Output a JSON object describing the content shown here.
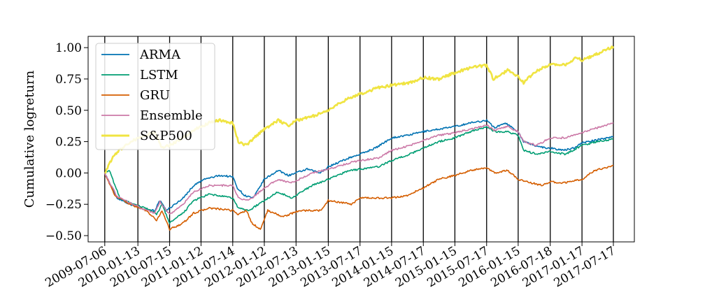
{
  "chart_data": {
    "type": "line",
    "title": "",
    "xlabel": "",
    "ylabel": "Cumulative logreturn",
    "ylim": [
      -0.55,
      1.09
    ],
    "xlim": [
      "2009-04-01",
      "2017-11-15"
    ],
    "yticks": [
      -0.5,
      -0.25,
      0.0,
      0.25,
      0.5,
      0.75,
      1.0
    ],
    "ytick_labels": [
      "−0.50",
      "−0.25",
      "0.00",
      "0.25",
      "0.50",
      "0.75",
      "1.00"
    ],
    "xticks": [
      "2009-07-06",
      "2010-01-13",
      "2010-07-15",
      "2011-01-12",
      "2011-07-14",
      "2012-01-12",
      "2012-07-13",
      "2013-01-15",
      "2013-07-17",
      "2014-01-15",
      "2014-07-17",
      "2015-01-15",
      "2015-07-17",
      "2016-01-15",
      "2016-07-18",
      "2017-01-17",
      "2017-07-17"
    ],
    "vertical_lines_at_xticks": true,
    "grid": false,
    "legend_position": "upper-left",
    "series": [
      {
        "name": "ARMA",
        "color": "#0072b2",
        "points": [
          [
            "2009-07-06",
            0.0
          ],
          [
            "2009-09-15",
            -0.2
          ],
          [
            "2009-12-01",
            -0.25
          ],
          [
            "2010-02-01",
            -0.28
          ],
          [
            "2010-04-20",
            -0.3
          ],
          [
            "2010-05-20",
            -0.22
          ],
          [
            "2010-06-25",
            -0.3
          ],
          [
            "2010-08-15",
            -0.25
          ],
          [
            "2010-10-01",
            -0.2
          ],
          [
            "2010-12-01",
            -0.1
          ],
          [
            "2011-02-01",
            -0.05
          ],
          [
            "2011-05-01",
            -0.02
          ],
          [
            "2011-07-14",
            -0.03
          ],
          [
            "2011-08-10",
            -0.12
          ],
          [
            "2011-09-20",
            -0.18
          ],
          [
            "2011-11-10",
            -0.2
          ],
          [
            "2012-01-12",
            -0.05
          ],
          [
            "2012-04-01",
            0.02
          ],
          [
            "2012-06-01",
            -0.02
          ],
          [
            "2012-09-15",
            0.03
          ],
          [
            "2012-12-01",
            0.0
          ],
          [
            "2013-01-15",
            0.05
          ],
          [
            "2013-05-15",
            0.12
          ],
          [
            "2013-07-17",
            0.15
          ],
          [
            "2013-10-15",
            0.2
          ],
          [
            "2014-01-15",
            0.28
          ],
          [
            "2014-04-15",
            0.3
          ],
          [
            "2014-07-17",
            0.33
          ],
          [
            "2014-10-15",
            0.35
          ],
          [
            "2015-01-15",
            0.37
          ],
          [
            "2015-04-15",
            0.4
          ],
          [
            "2015-07-17",
            0.42
          ],
          [
            "2015-09-01",
            0.36
          ],
          [
            "2015-11-01",
            0.4
          ],
          [
            "2016-01-15",
            0.33
          ],
          [
            "2016-02-15",
            0.25
          ],
          [
            "2016-04-15",
            0.22
          ],
          [
            "2016-06-25",
            0.2
          ],
          [
            "2016-07-18",
            0.2
          ],
          [
            "2016-10-01",
            0.18
          ],
          [
            "2016-12-01",
            0.2
          ],
          [
            "2017-01-17",
            0.24
          ],
          [
            "2017-04-01",
            0.26
          ],
          [
            "2017-07-17",
            0.29
          ]
        ]
      },
      {
        "name": "LSTM",
        "color": "#009e73",
        "points": [
          [
            "2009-07-06",
            0.0
          ],
          [
            "2009-08-01",
            0.02
          ],
          [
            "2009-10-01",
            -0.2
          ],
          [
            "2009-12-15",
            -0.25
          ],
          [
            "2010-03-01",
            -0.28
          ],
          [
            "2010-05-01",
            -0.33
          ],
          [
            "2010-06-01",
            -0.25
          ],
          [
            "2010-07-15",
            -0.4
          ],
          [
            "2010-10-01",
            -0.32
          ],
          [
            "2010-12-01",
            -0.22
          ],
          [
            "2011-03-01",
            -0.17
          ],
          [
            "2011-07-14",
            -0.2
          ],
          [
            "2011-08-15",
            -0.28
          ],
          [
            "2011-10-15",
            -0.3
          ],
          [
            "2012-01-12",
            -0.22
          ],
          [
            "2012-04-01",
            -0.15
          ],
          [
            "2012-06-15",
            -0.2
          ],
          [
            "2012-10-15",
            -0.1
          ],
          [
            "2013-01-15",
            -0.05
          ],
          [
            "2013-05-15",
            0.02
          ],
          [
            "2013-07-17",
            0.03
          ],
          [
            "2013-11-01",
            0.05
          ],
          [
            "2014-01-15",
            0.1
          ],
          [
            "2014-05-01",
            0.15
          ],
          [
            "2014-07-17",
            0.2
          ],
          [
            "2014-10-15",
            0.25
          ],
          [
            "2015-01-15",
            0.28
          ],
          [
            "2015-04-15",
            0.33
          ],
          [
            "2015-07-17",
            0.37
          ],
          [
            "2015-09-01",
            0.33
          ],
          [
            "2015-11-15",
            0.33
          ],
          [
            "2016-01-15",
            0.3
          ],
          [
            "2016-02-15",
            0.18
          ],
          [
            "2016-05-01",
            0.15
          ],
          [
            "2016-07-18",
            0.17
          ],
          [
            "2016-10-15",
            0.15
          ],
          [
            "2017-01-17",
            0.22
          ],
          [
            "2017-04-15",
            0.25
          ],
          [
            "2017-07-17",
            0.27
          ]
        ]
      },
      {
        "name": "GRU",
        "color": "#d55e00",
        "points": [
          [
            "2009-07-06",
            0.0
          ],
          [
            "2009-09-01",
            -0.18
          ],
          [
            "2009-12-01",
            -0.25
          ],
          [
            "2010-03-01",
            -0.3
          ],
          [
            "2010-05-01",
            -0.38
          ],
          [
            "2010-06-01",
            -0.3
          ],
          [
            "2010-07-15",
            -0.45
          ],
          [
            "2010-10-01",
            -0.4
          ],
          [
            "2010-12-01",
            -0.32
          ],
          [
            "2011-03-01",
            -0.28
          ],
          [
            "2011-07-14",
            -0.3
          ],
          [
            "2011-08-15",
            -0.33
          ],
          [
            "2011-10-01",
            -0.3
          ],
          [
            "2011-11-01",
            -0.4
          ],
          [
            "2011-12-20",
            -0.45
          ],
          [
            "2012-02-01",
            -0.3
          ],
          [
            "2012-05-01",
            -0.35
          ],
          [
            "2012-08-01",
            -0.3
          ],
          [
            "2012-12-01",
            -0.3
          ],
          [
            "2013-01-15",
            -0.22
          ],
          [
            "2013-06-01",
            -0.25
          ],
          [
            "2013-07-17",
            -0.2
          ],
          [
            "2013-10-01",
            -0.2
          ],
          [
            "2014-01-15",
            -0.2
          ],
          [
            "2014-04-15",
            -0.18
          ],
          [
            "2014-07-17",
            -0.12
          ],
          [
            "2014-10-15",
            -0.05
          ],
          [
            "2015-01-15",
            -0.02
          ],
          [
            "2015-04-15",
            0.02
          ],
          [
            "2015-07-17",
            0.04
          ],
          [
            "2015-09-01",
            0.0
          ],
          [
            "2015-11-15",
            0.02
          ],
          [
            "2016-01-15",
            -0.05
          ],
          [
            "2016-04-01",
            -0.08
          ],
          [
            "2016-06-01",
            -0.1
          ],
          [
            "2016-07-18",
            -0.07
          ],
          [
            "2016-10-01",
            -0.08
          ],
          [
            "2017-01-17",
            -0.05
          ],
          [
            "2017-04-01",
            0.02
          ],
          [
            "2017-07-17",
            0.06
          ]
        ]
      },
      {
        "name": "Ensemble",
        "color": "#cc79a7",
        "points": [
          [
            "2009-07-06",
            0.0
          ],
          [
            "2009-09-15",
            -0.19
          ],
          [
            "2009-12-01",
            -0.24
          ],
          [
            "2010-02-01",
            -0.28
          ],
          [
            "2010-04-20",
            -0.32
          ],
          [
            "2010-05-20",
            -0.23
          ],
          [
            "2010-07-15",
            -0.33
          ],
          [
            "2010-10-01",
            -0.25
          ],
          [
            "2010-12-01",
            -0.15
          ],
          [
            "2011-03-01",
            -0.1
          ],
          [
            "2011-07-14",
            -0.1
          ],
          [
            "2011-08-15",
            -0.2
          ],
          [
            "2011-10-15",
            -0.22
          ],
          [
            "2012-01-12",
            -0.12
          ],
          [
            "2012-04-01",
            -0.05
          ],
          [
            "2012-06-15",
            -0.08
          ],
          [
            "2012-10-15",
            0.0
          ],
          [
            "2013-01-15",
            0.03
          ],
          [
            "2013-05-15",
            0.08
          ],
          [
            "2013-07-17",
            0.1
          ],
          [
            "2013-11-01",
            0.12
          ],
          [
            "2014-01-15",
            0.18
          ],
          [
            "2014-05-01",
            0.22
          ],
          [
            "2014-07-17",
            0.26
          ],
          [
            "2014-10-15",
            0.3
          ],
          [
            "2015-01-15",
            0.32
          ],
          [
            "2015-04-15",
            0.35
          ],
          [
            "2015-07-17",
            0.38
          ],
          [
            "2015-09-01",
            0.34
          ],
          [
            "2015-11-15",
            0.37
          ],
          [
            "2016-01-15",
            0.33
          ],
          [
            "2016-02-15",
            0.25
          ],
          [
            "2016-05-01",
            0.22
          ],
          [
            "2016-07-18",
            0.28
          ],
          [
            "2016-10-15",
            0.28
          ],
          [
            "2017-01-17",
            0.32
          ],
          [
            "2017-04-15",
            0.36
          ],
          [
            "2017-07-17",
            0.4
          ]
        ]
      },
      {
        "name": "S&P500",
        "color": "#f0e442",
        "points": [
          [
            "2009-07-06",
            0.0
          ],
          [
            "2009-09-01",
            0.15
          ],
          [
            "2009-12-01",
            0.25
          ],
          [
            "2010-03-01",
            0.3
          ],
          [
            "2010-04-20",
            0.33
          ],
          [
            "2010-06-01",
            0.2
          ],
          [
            "2010-07-15",
            0.22
          ],
          [
            "2010-10-01",
            0.28
          ],
          [
            "2010-12-15",
            0.35
          ],
          [
            "2011-03-01",
            0.4
          ],
          [
            "2011-05-01",
            0.42
          ],
          [
            "2011-07-14",
            0.4
          ],
          [
            "2011-08-15",
            0.25
          ],
          [
            "2011-10-01",
            0.22
          ],
          [
            "2011-12-01",
            0.3
          ],
          [
            "2012-01-12",
            0.35
          ],
          [
            "2012-04-01",
            0.42
          ],
          [
            "2012-06-01",
            0.38
          ],
          [
            "2012-07-13",
            0.42
          ],
          [
            "2012-10-15",
            0.45
          ],
          [
            "2013-01-15",
            0.5
          ],
          [
            "2013-05-15",
            0.6
          ],
          [
            "2013-07-17",
            0.63
          ],
          [
            "2013-11-01",
            0.68
          ],
          [
            "2014-01-15",
            0.7
          ],
          [
            "2014-05-01",
            0.72
          ],
          [
            "2014-07-17",
            0.76
          ],
          [
            "2014-10-15",
            0.75
          ],
          [
            "2015-01-15",
            0.8
          ],
          [
            "2015-04-15",
            0.84
          ],
          [
            "2015-07-17",
            0.86
          ],
          [
            "2015-08-25",
            0.75
          ],
          [
            "2015-11-15",
            0.82
          ],
          [
            "2016-01-15",
            0.77
          ],
          [
            "2016-02-15",
            0.72
          ],
          [
            "2016-04-15",
            0.8
          ],
          [
            "2016-07-18",
            0.87
          ],
          [
            "2016-10-15",
            0.86
          ],
          [
            "2016-12-15",
            0.92
          ],
          [
            "2017-01-17",
            0.9
          ],
          [
            "2017-04-15",
            0.95
          ],
          [
            "2017-07-17",
            1.01
          ]
        ]
      }
    ]
  }
}
